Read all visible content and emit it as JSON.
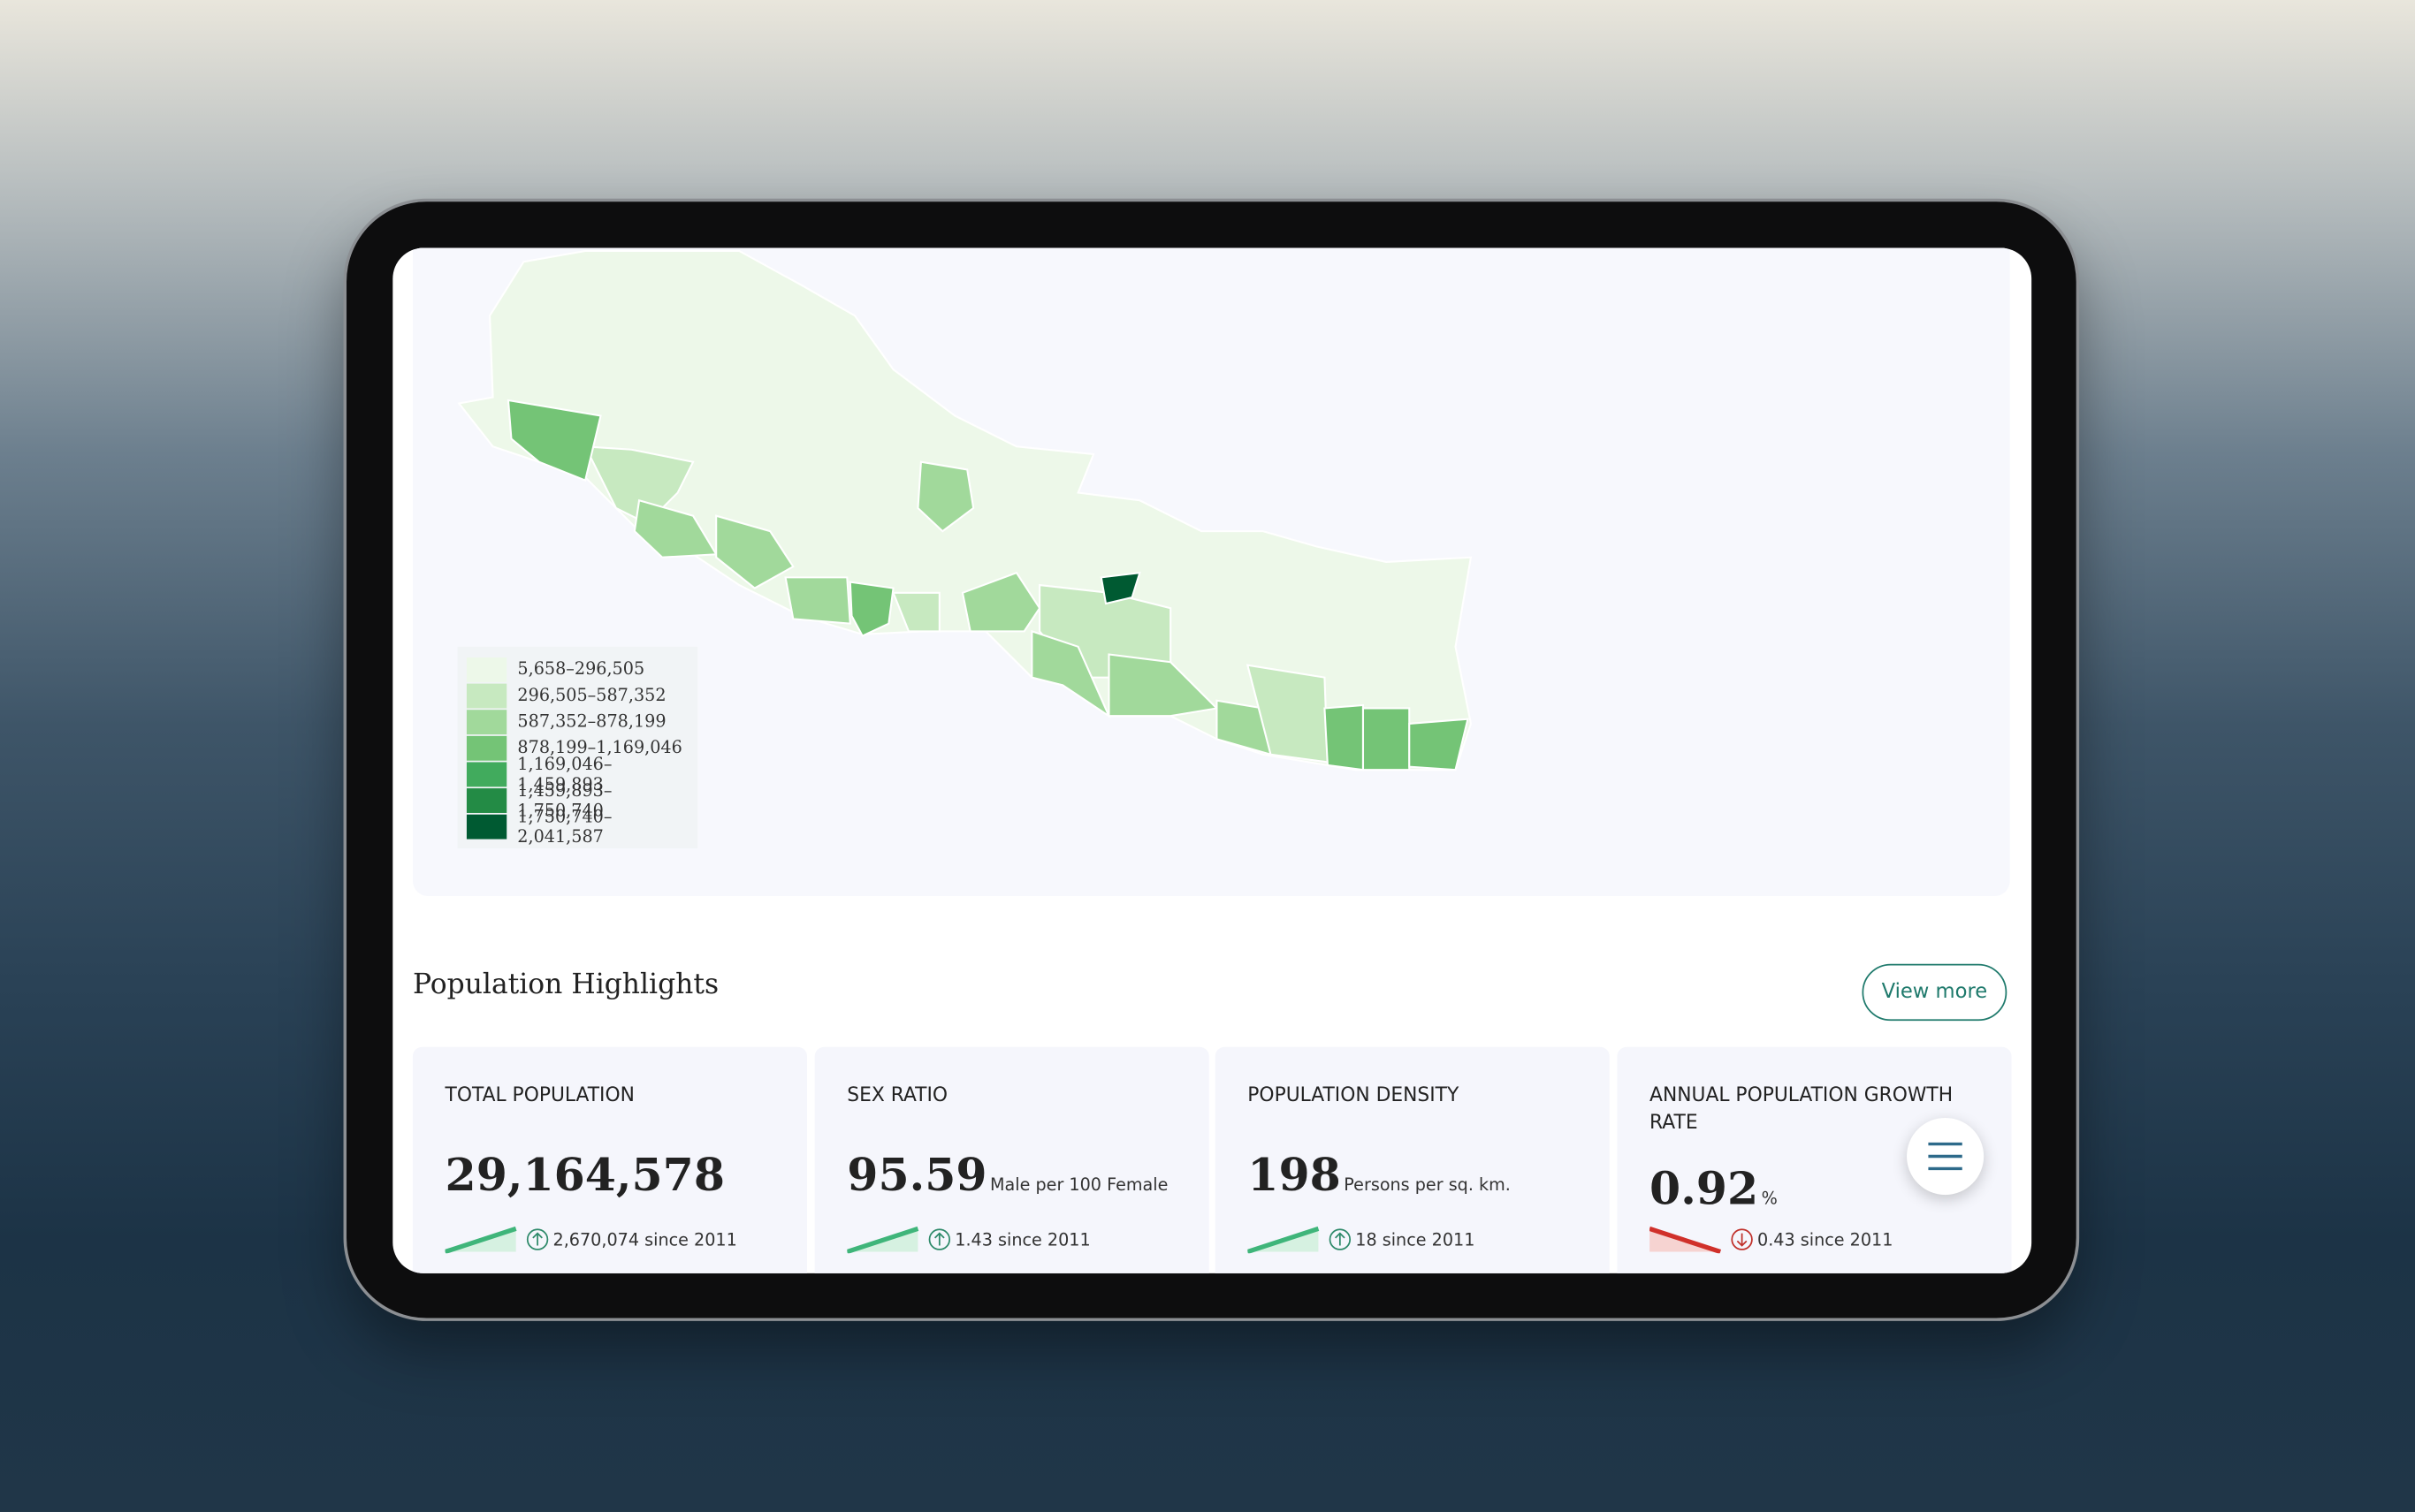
{
  "map": {
    "legend": [
      {
        "label": "5,658–296,505",
        "color": "#edf8e9"
      },
      {
        "label": "296,505–587,352",
        "color": "#c7e9c0"
      },
      {
        "label": "587,352–878,199",
        "color": "#a1d99b"
      },
      {
        "label": "878,199–1,169,046",
        "color": "#74c476"
      },
      {
        "label": "1,169,046–1,459,893",
        "color": "#41ab5d"
      },
      {
        "label": "1,459,893–1,750,740",
        "color": "#238b45"
      },
      {
        "label": "1,750,740–2,041,587",
        "color": "#005a32"
      }
    ]
  },
  "highlights": {
    "title": "Population Highlights",
    "view_more": "View more",
    "cards": [
      {
        "label": "TOTAL POPULATION",
        "value": "29,164,578",
        "change": "2,670,074 since 2011",
        "trend": "up"
      },
      {
        "label": "SEX RATIO",
        "value": "95.59",
        "unit": "Male per 100 Female",
        "change": "1.43 since 2011",
        "trend": "up"
      },
      {
        "label": "POPULATION DENSITY",
        "value": "198",
        "unit": "Persons per sq. km.",
        "change": "18 since 2011",
        "trend": "up"
      },
      {
        "label": "ANNUAL POPULATION GROWTH RATE",
        "value": "0.92",
        "unit": "%",
        "change": "0.43 since 2011",
        "trend": "down"
      }
    ]
  }
}
